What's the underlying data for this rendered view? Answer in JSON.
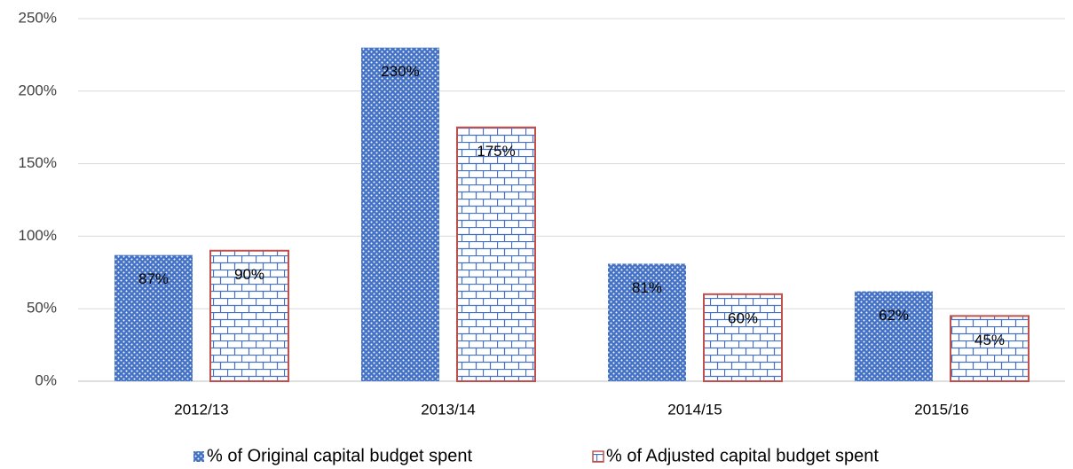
{
  "chart_data": {
    "type": "bar",
    "categories": [
      "2012/13",
      "2013/14",
      "2014/15",
      "2015/16"
    ],
    "series": [
      {
        "name": "% of Original capital budget spent",
        "color": "#4472c4",
        "pattern": "dots",
        "values": [
          87,
          230,
          81,
          62
        ],
        "value_labels": [
          "87%",
          "230%",
          "81%",
          "62%"
        ]
      },
      {
        "name": "% of Adjusted capital budget spent",
        "color": "#4472c4",
        "edgecolor": "#c0504d",
        "pattern": "bricks",
        "values": [
          90,
          175,
          60,
          45
        ],
        "value_labels": [
          "90%",
          "175%",
          "60%",
          "45%"
        ]
      }
    ],
    "ylim": [
      0,
      250
    ],
    "yticks": [
      {
        "value": 0,
        "label": "0%"
      },
      {
        "value": 50,
        "label": "50%"
      },
      {
        "value": 100,
        "label": "100%"
      },
      {
        "value": 150,
        "label": "150%"
      },
      {
        "value": 200,
        "label": "200%"
      },
      {
        "value": 250,
        "label": "250%"
      }
    ],
    "grid": true,
    "legend": "bottom"
  }
}
